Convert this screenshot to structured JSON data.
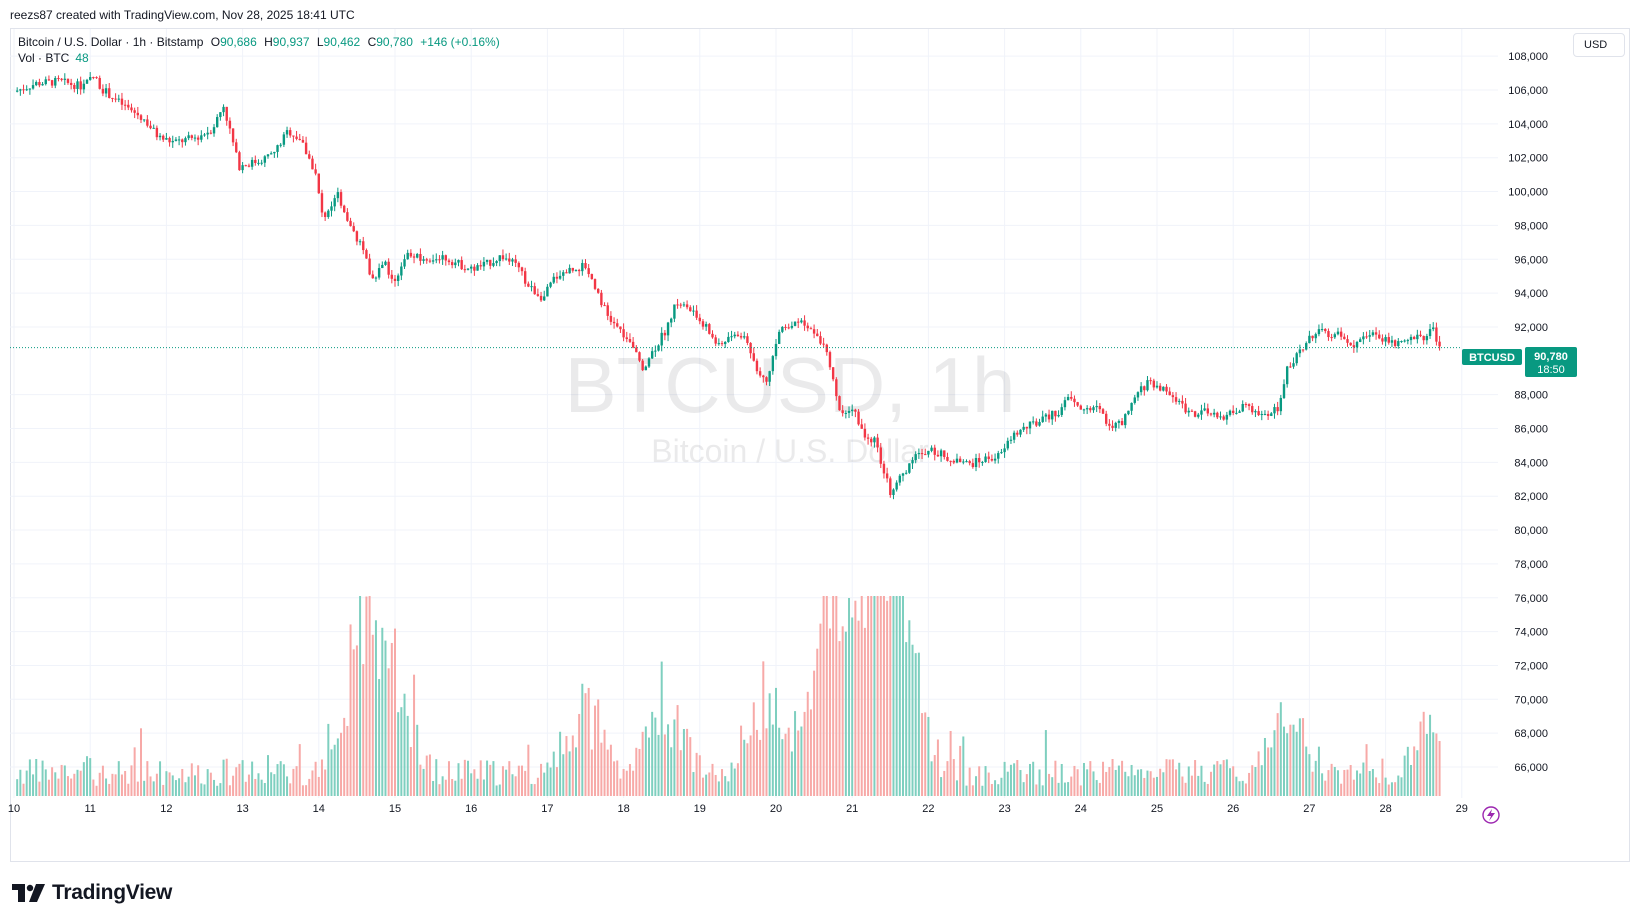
{
  "header": {
    "credit": "reezs87 created with TradingView.com, Nov 28, 2025 18:41 UTC"
  },
  "legend": {
    "symbol_line": "Bitcoin / U.S. Dollar · 1h · Bitstamp",
    "open_label": "O",
    "open": "90,686",
    "high_label": "H",
    "high": "90,937",
    "low_label": "L",
    "low": "90,462",
    "close_label": "C",
    "close": "90,780",
    "change": "+146 (+0.16%)",
    "volume_label": "Vol · BTC",
    "volume": "48"
  },
  "currency_button": "USD",
  "watermark": {
    "title": "BTCUSD, 1h",
    "subtitle": "Bitcoin / U.S. Dollar"
  },
  "price_tag": {
    "symbol": "BTCUSD",
    "price": "90,780",
    "countdown": "18:50"
  },
  "logo_text": "TradingView",
  "colors": {
    "up": "#089981",
    "down": "#f23645",
    "up_volume": "#7ecfbf",
    "down_volume": "#f7a9a7",
    "grid": "#f0f3fa",
    "axis_text": "#131722"
  },
  "chart_data": {
    "type": "candlestick",
    "title": "BTCUSD, 1h",
    "x_tick_labels": [
      "10",
      "11",
      "12",
      "13",
      "14",
      "15",
      "16",
      "17",
      "18",
      "19",
      "20",
      "21",
      "22",
      "23",
      "24",
      "25",
      "26",
      "27",
      "28",
      "29"
    ],
    "y_tick_labels": [
      "66,000",
      "68,000",
      "70,000",
      "72,000",
      "74,000",
      "76,000",
      "78,000",
      "80,000",
      "82,000",
      "84,000",
      "86,000",
      "88,000",
      "92,000",
      "94,000",
      "96,000",
      "98,000",
      "100,000",
      "102,000",
      "104,000",
      "106,000",
      "108,000"
    ],
    "ylim": [
      64500,
      108500
    ],
    "x_range_days": [
      10,
      29
    ],
    "last_price": 90780,
    "close_path": [
      {
        "d": 10.0,
        "p": 105900
      },
      {
        "d": 10.3,
        "p": 106400
      },
      {
        "d": 10.6,
        "p": 106500
      },
      {
        "d": 10.9,
        "p": 106200
      },
      {
        "d": 11.05,
        "p": 106800
      },
      {
        "d": 11.15,
        "p": 106100
      },
      {
        "d": 11.4,
        "p": 105200
      },
      {
        "d": 11.7,
        "p": 104300
      },
      {
        "d": 11.9,
        "p": 103200
      },
      {
        "d": 12.1,
        "p": 102900
      },
      {
        "d": 12.4,
        "p": 103200
      },
      {
        "d": 12.6,
        "p": 103700
      },
      {
        "d": 12.75,
        "p": 105100
      },
      {
        "d": 12.95,
        "p": 101500
      },
      {
        "d": 13.2,
        "p": 101800
      },
      {
        "d": 13.4,
        "p": 102200
      },
      {
        "d": 13.6,
        "p": 103600
      },
      {
        "d": 13.75,
        "p": 103100
      },
      {
        "d": 13.95,
        "p": 101200
      },
      {
        "d": 14.05,
        "p": 98400
      },
      {
        "d": 14.25,
        "p": 99800
      },
      {
        "d": 14.4,
        "p": 98200
      },
      {
        "d": 14.55,
        "p": 96800
      },
      {
        "d": 14.7,
        "p": 94800
      },
      {
        "d": 14.85,
        "p": 95900
      },
      {
        "d": 15.0,
        "p": 94500
      },
      {
        "d": 15.15,
        "p": 96300
      },
      {
        "d": 15.4,
        "p": 95900
      },
      {
        "d": 15.6,
        "p": 96200
      },
      {
        "d": 15.8,
        "p": 95800
      },
      {
        "d": 16.0,
        "p": 95400
      },
      {
        "d": 16.2,
        "p": 95700
      },
      {
        "d": 16.4,
        "p": 96200
      },
      {
        "d": 16.6,
        "p": 95600
      },
      {
        "d": 16.75,
        "p": 94400
      },
      {
        "d": 16.95,
        "p": 93700
      },
      {
        "d": 17.1,
        "p": 95000
      },
      {
        "d": 17.3,
        "p": 95400
      },
      {
        "d": 17.5,
        "p": 95600
      },
      {
        "d": 17.65,
        "p": 94200
      },
      {
        "d": 17.8,
        "p": 92500
      },
      {
        "d": 17.95,
        "p": 91800
      },
      {
        "d": 18.1,
        "p": 90900
      },
      {
        "d": 18.25,
        "p": 89600
      },
      {
        "d": 18.4,
        "p": 90700
      },
      {
        "d": 18.55,
        "p": 91800
      },
      {
        "d": 18.7,
        "p": 93500
      },
      {
        "d": 18.9,
        "p": 92900
      },
      {
        "d": 19.05,
        "p": 92200
      },
      {
        "d": 19.25,
        "p": 90800
      },
      {
        "d": 19.4,
        "p": 91500
      },
      {
        "d": 19.6,
        "p": 91400
      },
      {
        "d": 19.75,
        "p": 89500
      },
      {
        "d": 19.9,
        "p": 88900
      },
      {
        "d": 20.05,
        "p": 91900
      },
      {
        "d": 20.25,
        "p": 92400
      },
      {
        "d": 20.45,
        "p": 91800
      },
      {
        "d": 20.65,
        "p": 90700
      },
      {
        "d": 20.75,
        "p": 88700
      },
      {
        "d": 20.85,
        "p": 86700
      },
      {
        "d": 21.0,
        "p": 87300
      },
      {
        "d": 21.15,
        "p": 85700
      },
      {
        "d": 21.3,
        "p": 85300
      },
      {
        "d": 21.4,
        "p": 83600
      },
      {
        "d": 21.5,
        "p": 82300
      },
      {
        "d": 21.65,
        "p": 83100
      },
      {
        "d": 21.8,
        "p": 84400
      },
      {
        "d": 22.0,
        "p": 84700
      },
      {
        "d": 22.15,
        "p": 84500
      },
      {
        "d": 22.35,
        "p": 84000
      },
      {
        "d": 22.55,
        "p": 83900
      },
      {
        "d": 22.75,
        "p": 84200
      },
      {
        "d": 22.95,
        "p": 84400
      },
      {
        "d": 23.1,
        "p": 85600
      },
      {
        "d": 23.3,
        "p": 86100
      },
      {
        "d": 23.5,
        "p": 86500
      },
      {
        "d": 23.7,
        "p": 87000
      },
      {
        "d": 23.85,
        "p": 87800
      },
      {
        "d": 24.0,
        "p": 87100
      },
      {
        "d": 24.2,
        "p": 87300
      },
      {
        "d": 24.4,
        "p": 86100
      },
      {
        "d": 24.55,
        "p": 86300
      },
      {
        "d": 24.75,
        "p": 88100
      },
      {
        "d": 24.9,
        "p": 88800
      },
      {
        "d": 25.05,
        "p": 88400
      },
      {
        "d": 25.25,
        "p": 87700
      },
      {
        "d": 25.45,
        "p": 86900
      },
      {
        "d": 25.6,
        "p": 87000
      },
      {
        "d": 25.8,
        "p": 86600
      },
      {
        "d": 26.0,
        "p": 87000
      },
      {
        "d": 26.15,
        "p": 87300
      },
      {
        "d": 26.3,
        "p": 86800
      },
      {
        "d": 26.45,
        "p": 86700
      },
      {
        "d": 26.6,
        "p": 87300
      },
      {
        "d": 26.7,
        "p": 89600
      },
      {
        "d": 26.85,
        "p": 90300
      },
      {
        "d": 27.0,
        "p": 91500
      },
      {
        "d": 27.2,
        "p": 91700
      },
      {
        "d": 27.4,
        "p": 91500
      },
      {
        "d": 27.6,
        "p": 91000
      },
      {
        "d": 27.8,
        "p": 91600
      },
      {
        "d": 28.0,
        "p": 91300
      },
      {
        "d": 28.2,
        "p": 90900
      },
      {
        "d": 28.35,
        "p": 91500
      },
      {
        "d": 28.5,
        "p": 91200
      },
      {
        "d": 28.6,
        "p": 92200
      },
      {
        "d": 28.67,
        "p": 91100
      },
      {
        "d": 28.73,
        "p": 90780
      }
    ],
    "volume_spike_days": [
      {
        "d": 14.55,
        "v": 7
      },
      {
        "d": 14.7,
        "v": 6
      },
      {
        "d": 15.0,
        "v": 5
      },
      {
        "d": 17.5,
        "v": 5
      },
      {
        "d": 18.55,
        "v": 6
      },
      {
        "d": 19.9,
        "v": 6
      },
      {
        "d": 20.65,
        "v": 7
      },
      {
        "d": 20.85,
        "v": 8
      },
      {
        "d": 21.3,
        "v": 8
      },
      {
        "d": 21.5,
        "v": 10
      },
      {
        "d": 21.65,
        "v": 7
      },
      {
        "d": 26.7,
        "v": 4.5
      },
      {
        "d": 28.6,
        "v": 4
      }
    ]
  }
}
